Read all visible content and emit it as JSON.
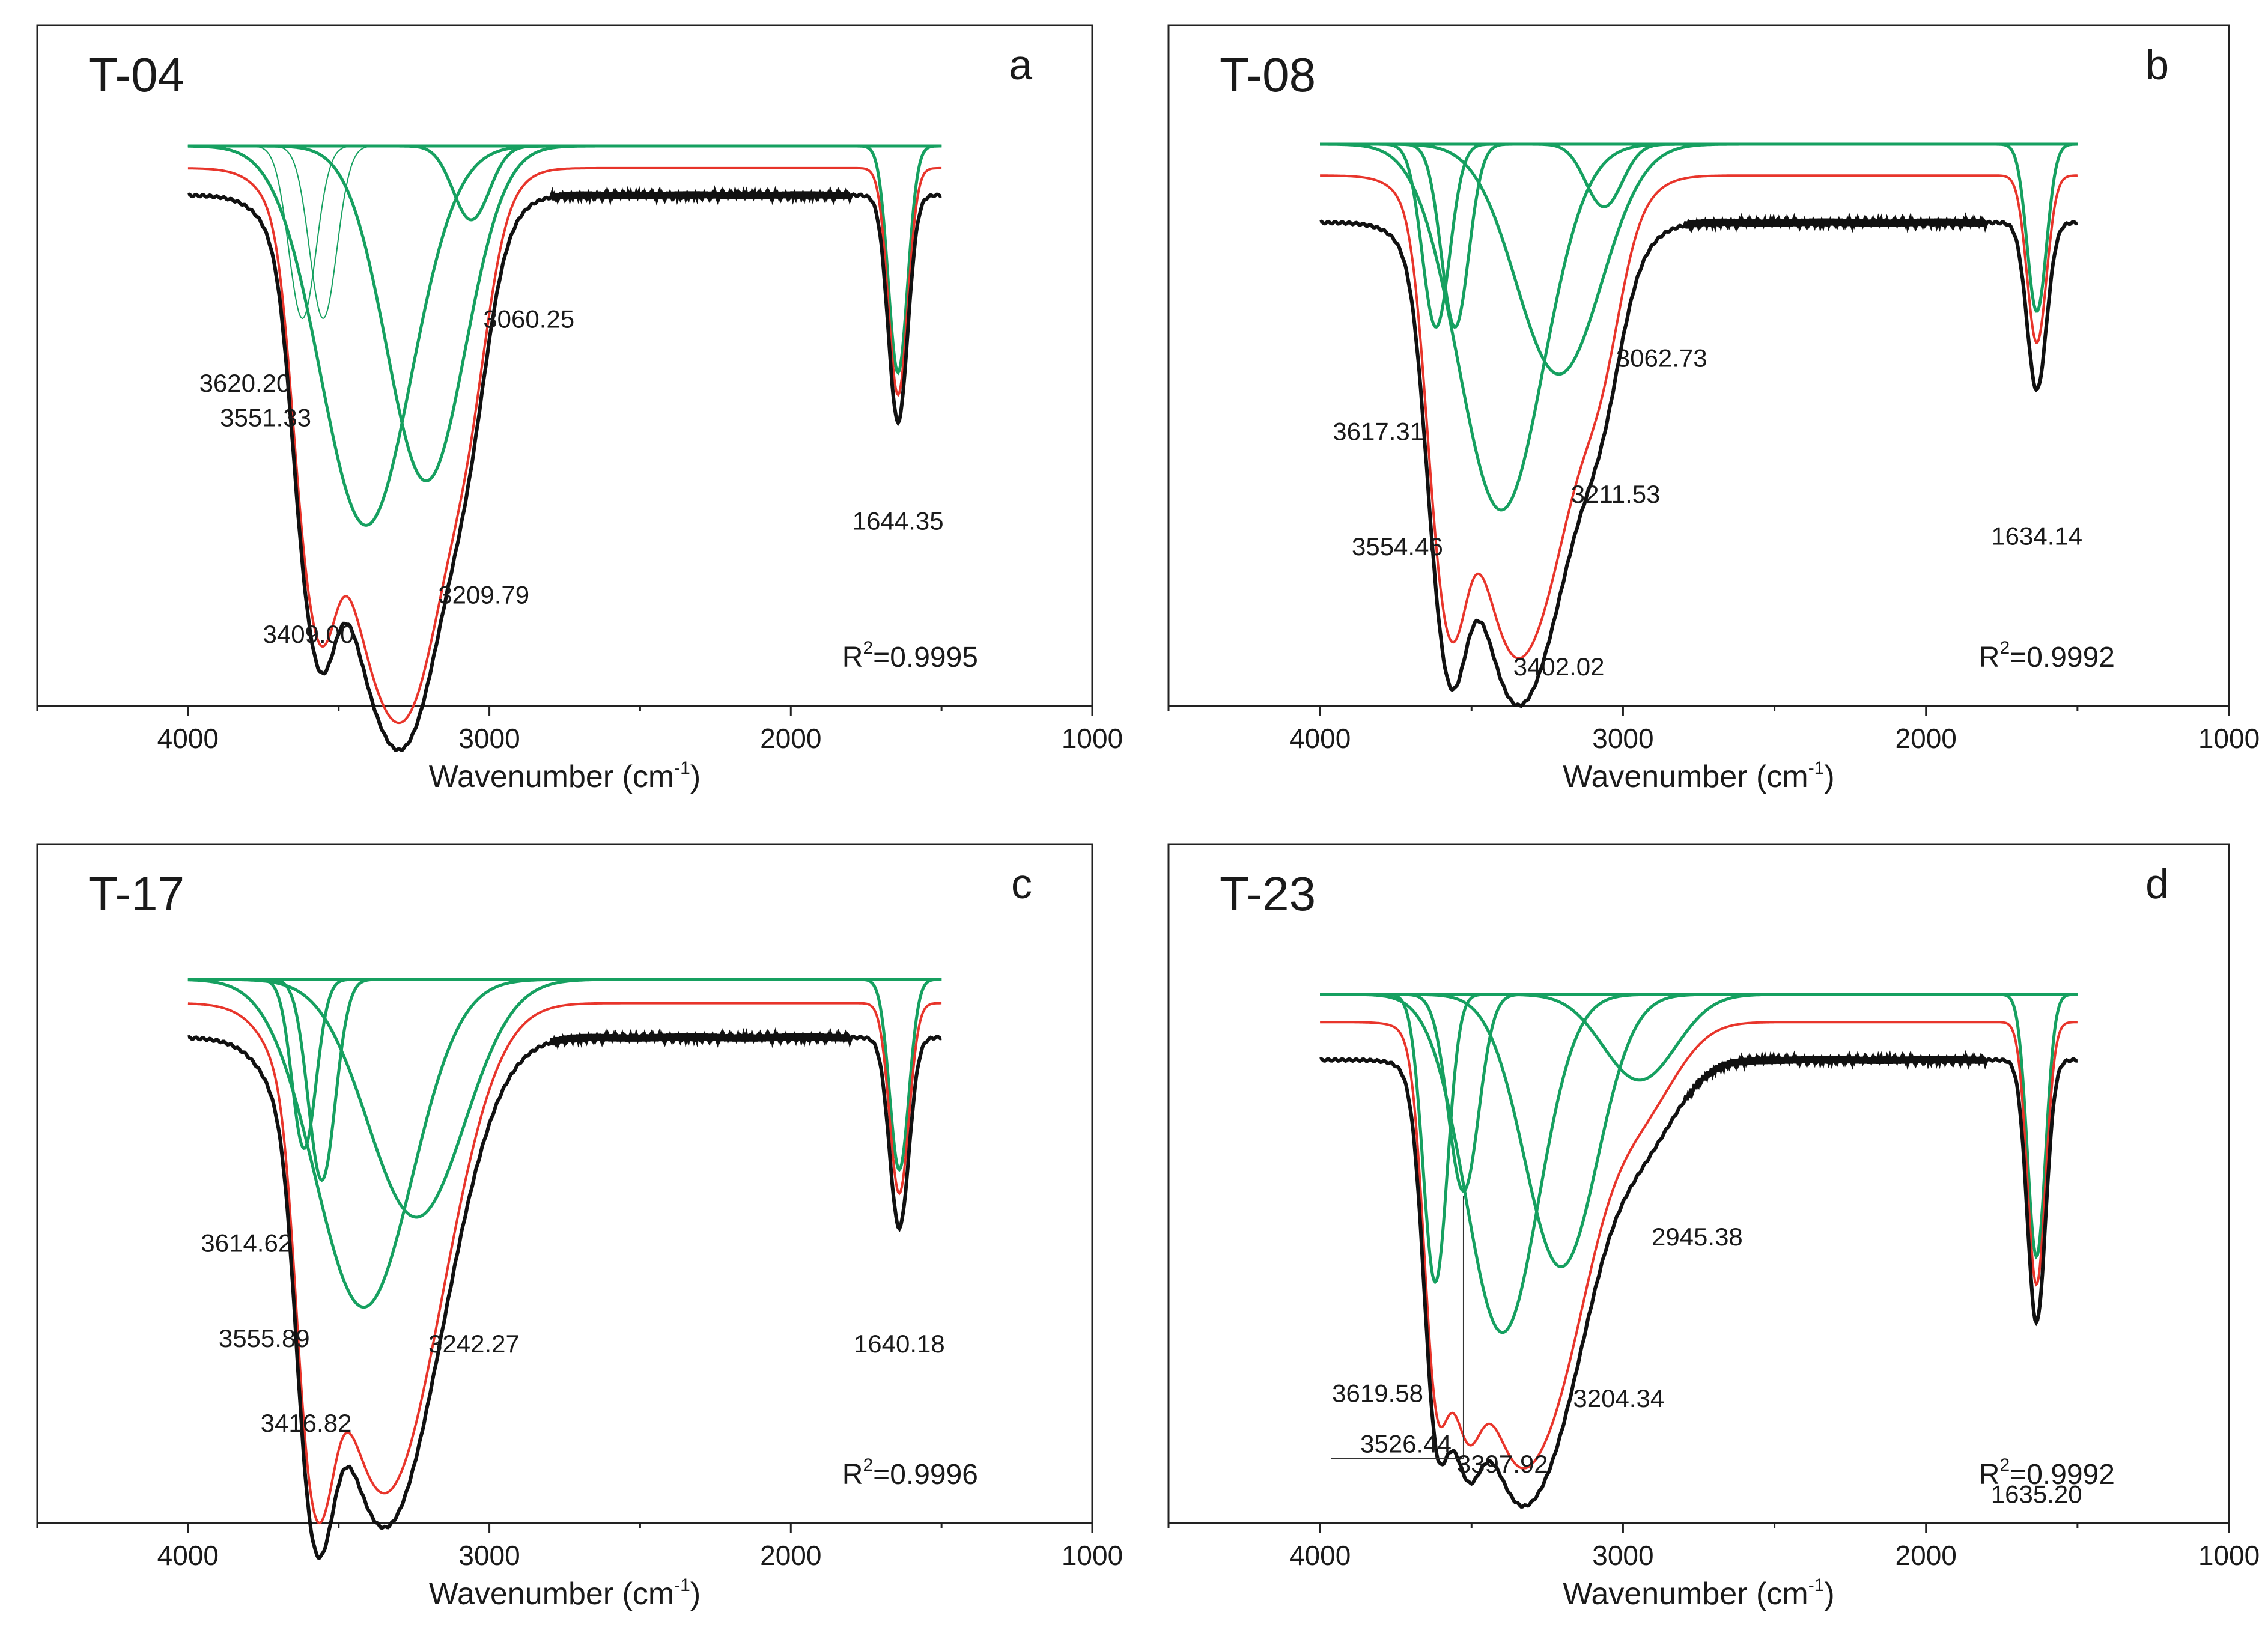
{
  "figure": {
    "description_free": true
  },
  "chart_data": [
    {
      "type": "line",
      "panel": "a",
      "title": "T-04",
      "xlabel": "Wavenumber (cm",
      "xlabel_exp": "-1",
      "xlabel_close": ")",
      "xlim": [
        4500,
        1000
      ],
      "xticks": [
        4000,
        3000,
        2000,
        1000
      ],
      "tick_labels": [
        "4000",
        "3000",
        "2000",
        "1000"
      ],
      "r2_prefix": "R",
      "r2_exp": "2",
      "r2_value": "=0.9995",
      "colors": {
        "measured": "#111111",
        "fitted": "#e8352b",
        "components": "#16a060"
      },
      "baselines": {
        "measured": 0.1,
        "fitted": 0.045,
        "components": 0.0
      },
      "components": [
        {
          "center": 3620.2,
          "depth": 0.35,
          "width": 45,
          "thin": true
        },
        {
          "center": 3551.33,
          "depth": 0.35,
          "width": 45,
          "thin": true
        },
        {
          "center": 3409.0,
          "depth": 0.77,
          "width": 150,
          "thin": false
        },
        {
          "center": 3209.79,
          "depth": 0.68,
          "width": 130,
          "thin": false
        },
        {
          "center": 3060.25,
          "depth": 0.15,
          "width": 60,
          "thin": false
        },
        {
          "center": 1644.35,
          "depth": 0.46,
          "width": 32,
          "thin": false
        }
      ],
      "peak_labels": [
        {
          "text": "3620.20",
          "x": 3620.2,
          "depth": 0.35,
          "anchor": "right"
        },
        {
          "text": "3551.33",
          "x": 3551.33,
          "depth": 0.42,
          "anchor": "right"
        },
        {
          "text": "3409.00",
          "x": 3409.0,
          "depth": 0.86,
          "anchor": "right"
        },
        {
          "text": "3209.79",
          "x": 3209.79,
          "depth": 0.78,
          "anchor": "left"
        },
        {
          "text": "3060.25",
          "x": 3060.25,
          "depth": 0.22,
          "anchor": "left"
        },
        {
          "text": "1644.35",
          "x": 1644.35,
          "depth": 0.63,
          "anchor": "middle"
        }
      ]
    },
    {
      "type": "line",
      "panel": "b",
      "title": "T-08",
      "xlabel": "Wavenumber (cm",
      "xlabel_exp": "-1",
      "xlabel_close": ")",
      "xlim": [
        4500,
        1000
      ],
      "xticks": [
        4000,
        3000,
        2000,
        1000
      ],
      "tick_labels": [
        "4000",
        "3000",
        "2000",
        "1000"
      ],
      "r2_prefix": "R",
      "r2_exp": "2",
      "r2_value": "=0.9992",
      "colors": {
        "measured": "#111111",
        "fitted": "#e8352b",
        "components": "#16a060"
      },
      "baselines": {
        "measured": 0.15,
        "fitted": 0.06,
        "components": 0.0
      },
      "components": [
        {
          "center": 3617.31,
          "depth": 0.35,
          "width": 45,
          "thin": false
        },
        {
          "center": 3554.46,
          "depth": 0.35,
          "width": 45,
          "thin": false
        },
        {
          "center": 3402.02,
          "depth": 0.7,
          "width": 140,
          "thin": false
        },
        {
          "center": 3211.53,
          "depth": 0.44,
          "width": 140,
          "thin": false
        },
        {
          "center": 3062.73,
          "depth": 0.12,
          "width": 60,
          "thin": false
        },
        {
          "center": 1634.14,
          "depth": 0.32,
          "width": 32,
          "thin": false
        }
      ],
      "peak_labels": [
        {
          "text": "3617.31",
          "x": 3617.31,
          "depth": 0.37,
          "anchor": "right"
        },
        {
          "text": "3554.46",
          "x": 3554.46,
          "depth": 0.59,
          "anchor": "right"
        },
        {
          "text": "3402.02",
          "x": 3402.02,
          "depth": 0.82,
          "anchor": "left"
        },
        {
          "text": "3211.53",
          "x": 3211.53,
          "depth": 0.49,
          "anchor": "left"
        },
        {
          "text": "3062.73",
          "x": 3062.73,
          "depth": 0.23,
          "anchor": "left"
        },
        {
          "text": "1634.14",
          "x": 1634.14,
          "depth": 0.57,
          "anchor": "middle"
        }
      ]
    },
    {
      "type": "line",
      "panel": "c",
      "title": "T-17",
      "xlabel": "Wavenumber (cm",
      "xlabel_exp": "-1",
      "xlabel_close": ")",
      "xlim": [
        4500,
        1000
      ],
      "xticks": [
        4000,
        3000,
        2000,
        1000
      ],
      "tick_labels": [
        "4000",
        "3000",
        "2000",
        "1000"
      ],
      "r2_prefix": "R",
      "r2_exp": "2",
      "r2_value": "=0.9996",
      "colors": {
        "measured": "#111111",
        "fitted": "#e8352b",
        "components": "#16a060"
      },
      "baselines": {
        "measured": 0.11,
        "fitted": 0.045,
        "components": 0.0
      },
      "components": [
        {
          "center": 3614.62,
          "depth": 0.32,
          "width": 40,
          "thin": false
        },
        {
          "center": 3555.89,
          "depth": 0.38,
          "width": 45,
          "thin": false
        },
        {
          "center": 3416.82,
          "depth": 0.62,
          "width": 160,
          "thin": false
        },
        {
          "center": 3242.27,
          "depth": 0.45,
          "width": 160,
          "thin": false
        },
        {
          "center": 1640.18,
          "depth": 0.36,
          "width": 32,
          "thin": false
        }
      ],
      "peak_labels": [
        {
          "text": "3614.62",
          "x": 3614.62,
          "depth": 0.36,
          "anchor": "right"
        },
        {
          "text": "3555.89",
          "x": 3555.89,
          "depth": 0.54,
          "anchor": "right"
        },
        {
          "text": "3416.82",
          "x": 3416.82,
          "depth": 0.7,
          "anchor": "right"
        },
        {
          "text": "3242.27",
          "x": 3242.27,
          "depth": 0.55,
          "anchor": "left"
        },
        {
          "text": "1640.18",
          "x": 1640.18,
          "depth": 0.55,
          "anchor": "middle"
        }
      ]
    },
    {
      "type": "line",
      "panel": "d",
      "title": "T-23",
      "xlabel": "Wavenumber (cm",
      "xlabel_exp": "-1",
      "xlabel_close": ")",
      "xlim": [
        4500,
        1000
      ],
      "xticks": [
        4000,
        3000,
        2000,
        1000
      ],
      "tick_labels": [
        "4000",
        "3000",
        "2000",
        "1000"
      ],
      "r2_prefix": "R",
      "r2_exp": "2",
      "r2_value": "=0.9992",
      "colors": {
        "measured": "#111111",
        "fitted": "#e8352b",
        "components": "#16a060"
      },
      "baselines": {
        "measured": 0.13,
        "fitted": 0.055,
        "components": 0.0
      },
      "components": [
        {
          "center": 3619.58,
          "depth": 0.57,
          "width": 40,
          "thin": false
        },
        {
          "center": 3526.44,
          "depth": 0.39,
          "width": 50,
          "thin": false
        },
        {
          "center": 3397.92,
          "depth": 0.67,
          "width": 120,
          "thin": false
        },
        {
          "center": 3204.34,
          "depth": 0.54,
          "width": 120,
          "thin": false
        },
        {
          "center": 2945.38,
          "depth": 0.17,
          "width": 120,
          "thin": false
        },
        {
          "center": 1635.2,
          "depth": 0.52,
          "width": 30,
          "thin": false
        }
      ],
      "peak_labels": [
        {
          "text": "3619.58",
          "x": 3619.58,
          "depth": 0.63,
          "anchor": "right"
        },
        {
          "text": "3526.44",
          "x": 3526.44,
          "depth": 0.73,
          "anchor": "right",
          "underline": true
        },
        {
          "text": "3397.92",
          "x": 3397.92,
          "depth": 0.77,
          "anchor": "middle"
        },
        {
          "text": "3204.34",
          "x": 3204.34,
          "depth": 0.64,
          "anchor": "left"
        },
        {
          "text": "2945.38",
          "x": 2945.38,
          "depth": 0.32,
          "anchor": "left"
        },
        {
          "text": "1635.20",
          "x": 1635.2,
          "depth": 0.83,
          "anchor": "middle"
        }
      ]
    }
  ]
}
